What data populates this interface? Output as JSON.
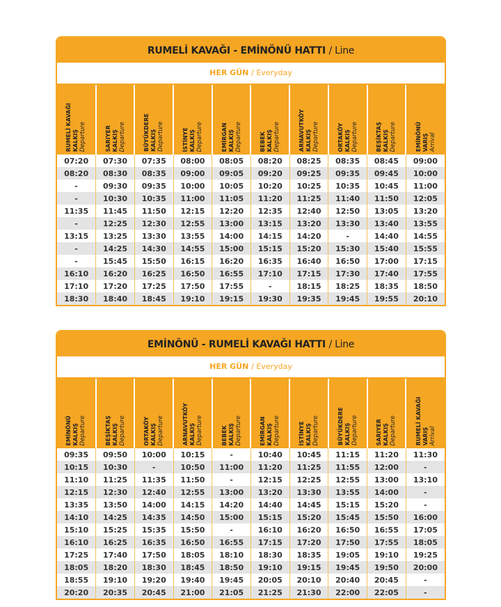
{
  "accent_color": "#f5a623",
  "tables": [
    {
      "title": "RUMELİ KAVAĞI - EMİNÖNÜ HATTI",
      "title_en": "/ Line",
      "subtitle": "HER GÜN",
      "subtitle_en": "/ Everyday",
      "columns": [
        {
          "name": "RUMELİ KAVAĞI",
          "type": "KALKIŞ",
          "en": "Departure"
        },
        {
          "name": "SARIYER",
          "type": "KALKIŞ",
          "en": "Departure"
        },
        {
          "name": "BÜYÜKDERE",
          "type": "KALKIŞ",
          "en": "Departure"
        },
        {
          "name": "İSTİNYE",
          "type": "KALKIŞ",
          "en": "Departure"
        },
        {
          "name": "EMİRGAN",
          "type": "KALKIŞ",
          "en": "Departure"
        },
        {
          "name": "BEBEK",
          "type": "KALKIŞ",
          "en": "Departure"
        },
        {
          "name": "ARNAVUTKÖY",
          "type": "KALKIŞ",
          "en": "Departure"
        },
        {
          "name": "ORTAKÖY",
          "type": "KALKIŞ",
          "en": "Departure"
        },
        {
          "name": "BEŞİKTAŞ",
          "type": "KALKIŞ",
          "en": "Departure"
        },
        {
          "name": "EMİNÖNÜ",
          "type": "VARIŞ",
          "en": "Arrival"
        }
      ],
      "rows": [
        [
          "07:20",
          "07:30",
          "07:35",
          "08:00",
          "08:05",
          "08:20",
          "08:25",
          "08:35",
          "08:45",
          "09:00"
        ],
        [
          "08:20",
          "08:30",
          "08:35",
          "09:00",
          "09:05",
          "09:20",
          "09:25",
          "09:35",
          "09:45",
          "10:00"
        ],
        [
          "-",
          "09:30",
          "09:35",
          "10:00",
          "10:05",
          "10:20",
          "10:25",
          "10:35",
          "10:45",
          "11:00"
        ],
        [
          "-",
          "10:30",
          "10:35",
          "11:00",
          "11:05",
          "11:20",
          "11:25",
          "11:40",
          "11:50",
          "12:05"
        ],
        [
          "11:35",
          "11:45",
          "11:50",
          "12:15",
          "12:20",
          "12:35",
          "12:40",
          "12:50",
          "13:05",
          "13:20"
        ],
        [
          "-",
          "12:25",
          "12:30",
          "12:55",
          "13:00",
          "13:15",
          "13:20",
          "13:30",
          "13:40",
          "13:55"
        ],
        [
          "13:15",
          "13:25",
          "13:30",
          "13:55",
          "14:00",
          "14:15",
          "14:20",
          "-",
          "14:40",
          "14:55"
        ],
        [
          "-",
          "14:25",
          "14:30",
          "14:55",
          "15:00",
          "15:15",
          "15:20",
          "15:30",
          "15:40",
          "15:55"
        ],
        [
          "-",
          "15:45",
          "15:50",
          "16:15",
          "16:20",
          "16:35",
          "16:40",
          "16:50",
          "17:00",
          "17:15"
        ],
        [
          "16:10",
          "16:20",
          "16:25",
          "16:50",
          "16:55",
          "17:10",
          "17:15",
          "17:30",
          "17:40",
          "17:55"
        ],
        [
          "17:10",
          "17:20",
          "17:25",
          "17:50",
          "17:55",
          "-",
          "18:15",
          "18:25",
          "18:35",
          "18:50"
        ],
        [
          "18:30",
          "18:40",
          "18:45",
          "19:10",
          "19:15",
          "19:30",
          "19:35",
          "19:45",
          "19:55",
          "20:10"
        ]
      ]
    },
    {
      "title": "EMİNÖNÜ - RUMELİ KAVAĞI HATTI",
      "title_en": "/ Line",
      "subtitle": "HER GÜN",
      "subtitle_en": "/ Everyday",
      "columns": [
        {
          "name": "EMİNÖNÜ",
          "type": "KALKIŞ",
          "en": "Departure"
        },
        {
          "name": "BEŞİKTAŞ",
          "type": "KALKIŞ",
          "en": "Departure"
        },
        {
          "name": "ORTAKÖY",
          "type": "KALKIŞ",
          "en": "Departure"
        },
        {
          "name": "ARNAVUTKÖY",
          "type": "KALKIŞ",
          "en": "Departure"
        },
        {
          "name": "BEBEK",
          "type": "KALKIŞ",
          "en": "Departure"
        },
        {
          "name": "EMİRGAN",
          "type": "KALKIŞ",
          "en": "Departure"
        },
        {
          "name": "İSTİNYE",
          "type": "KALKIŞ",
          "en": "Departure"
        },
        {
          "name": "BÜYÜKDERE",
          "type": "KALKIŞ",
          "en": "Departure"
        },
        {
          "name": "SARIYER",
          "type": "KALKIŞ",
          "en": "Departure"
        },
        {
          "name": "RUMELİ KAVAĞI",
          "type": "VARIŞ",
          "en": "Arrival"
        }
      ],
      "rows": [
        [
          "09:35",
          "09:50",
          "10:00",
          "10:15",
          "-",
          "10:40",
          "10:45",
          "11:15",
          "11:20",
          "11:30"
        ],
        [
          "10:15",
          "10:30",
          "-",
          "10:50",
          "11:00",
          "11:20",
          "11:25",
          "11:55",
          "12:00",
          "-"
        ],
        [
          "11:10",
          "11:25",
          "11:35",
          "11:50",
          "-",
          "12:15",
          "12:25",
          "12:55",
          "13:00",
          "13:10"
        ],
        [
          "12:15",
          "12:30",
          "12:40",
          "12:55",
          "13:00",
          "13:20",
          "13:30",
          "13:55",
          "14:00",
          "-"
        ],
        [
          "13:35",
          "13:50",
          "14:00",
          "14:15",
          "14:20",
          "14:40",
          "14:45",
          "15:15",
          "15:20",
          "-"
        ],
        [
          "14:10",
          "14:25",
          "14:35",
          "14:50",
          "15:00",
          "15:15",
          "15:20",
          "15:45",
          "15:50",
          "16:00"
        ],
        [
          "15:10",
          "15:25",
          "15:35",
          "15:50",
          "-",
          "16:10",
          "16:20",
          "16:50",
          "16:55",
          "17:05"
        ],
        [
          "16:10",
          "16:25",
          "16:35",
          "16:50",
          "16:55",
          "17:15",
          "17:20",
          "17:50",
          "17:55",
          "18:05"
        ],
        [
          "17:25",
          "17:40",
          "17:50",
          "18:05",
          "18:10",
          "18:30",
          "18:35",
          "19:05",
          "19:10",
          "19:25"
        ],
        [
          "18:05",
          "18:20",
          "18:30",
          "18:45",
          "18:50",
          "19:10",
          "19:15",
          "19:45",
          "19:50",
          "20:00"
        ],
        [
          "18:55",
          "19:10",
          "19:20",
          "19:40",
          "19:45",
          "20:05",
          "20:10",
          "20:40",
          "20:45",
          "-"
        ],
        [
          "20:20",
          "20:35",
          "20:45",
          "21:00",
          "21:05",
          "21:25",
          "21:30",
          "22:00",
          "22:05",
          "-"
        ]
      ]
    }
  ]
}
